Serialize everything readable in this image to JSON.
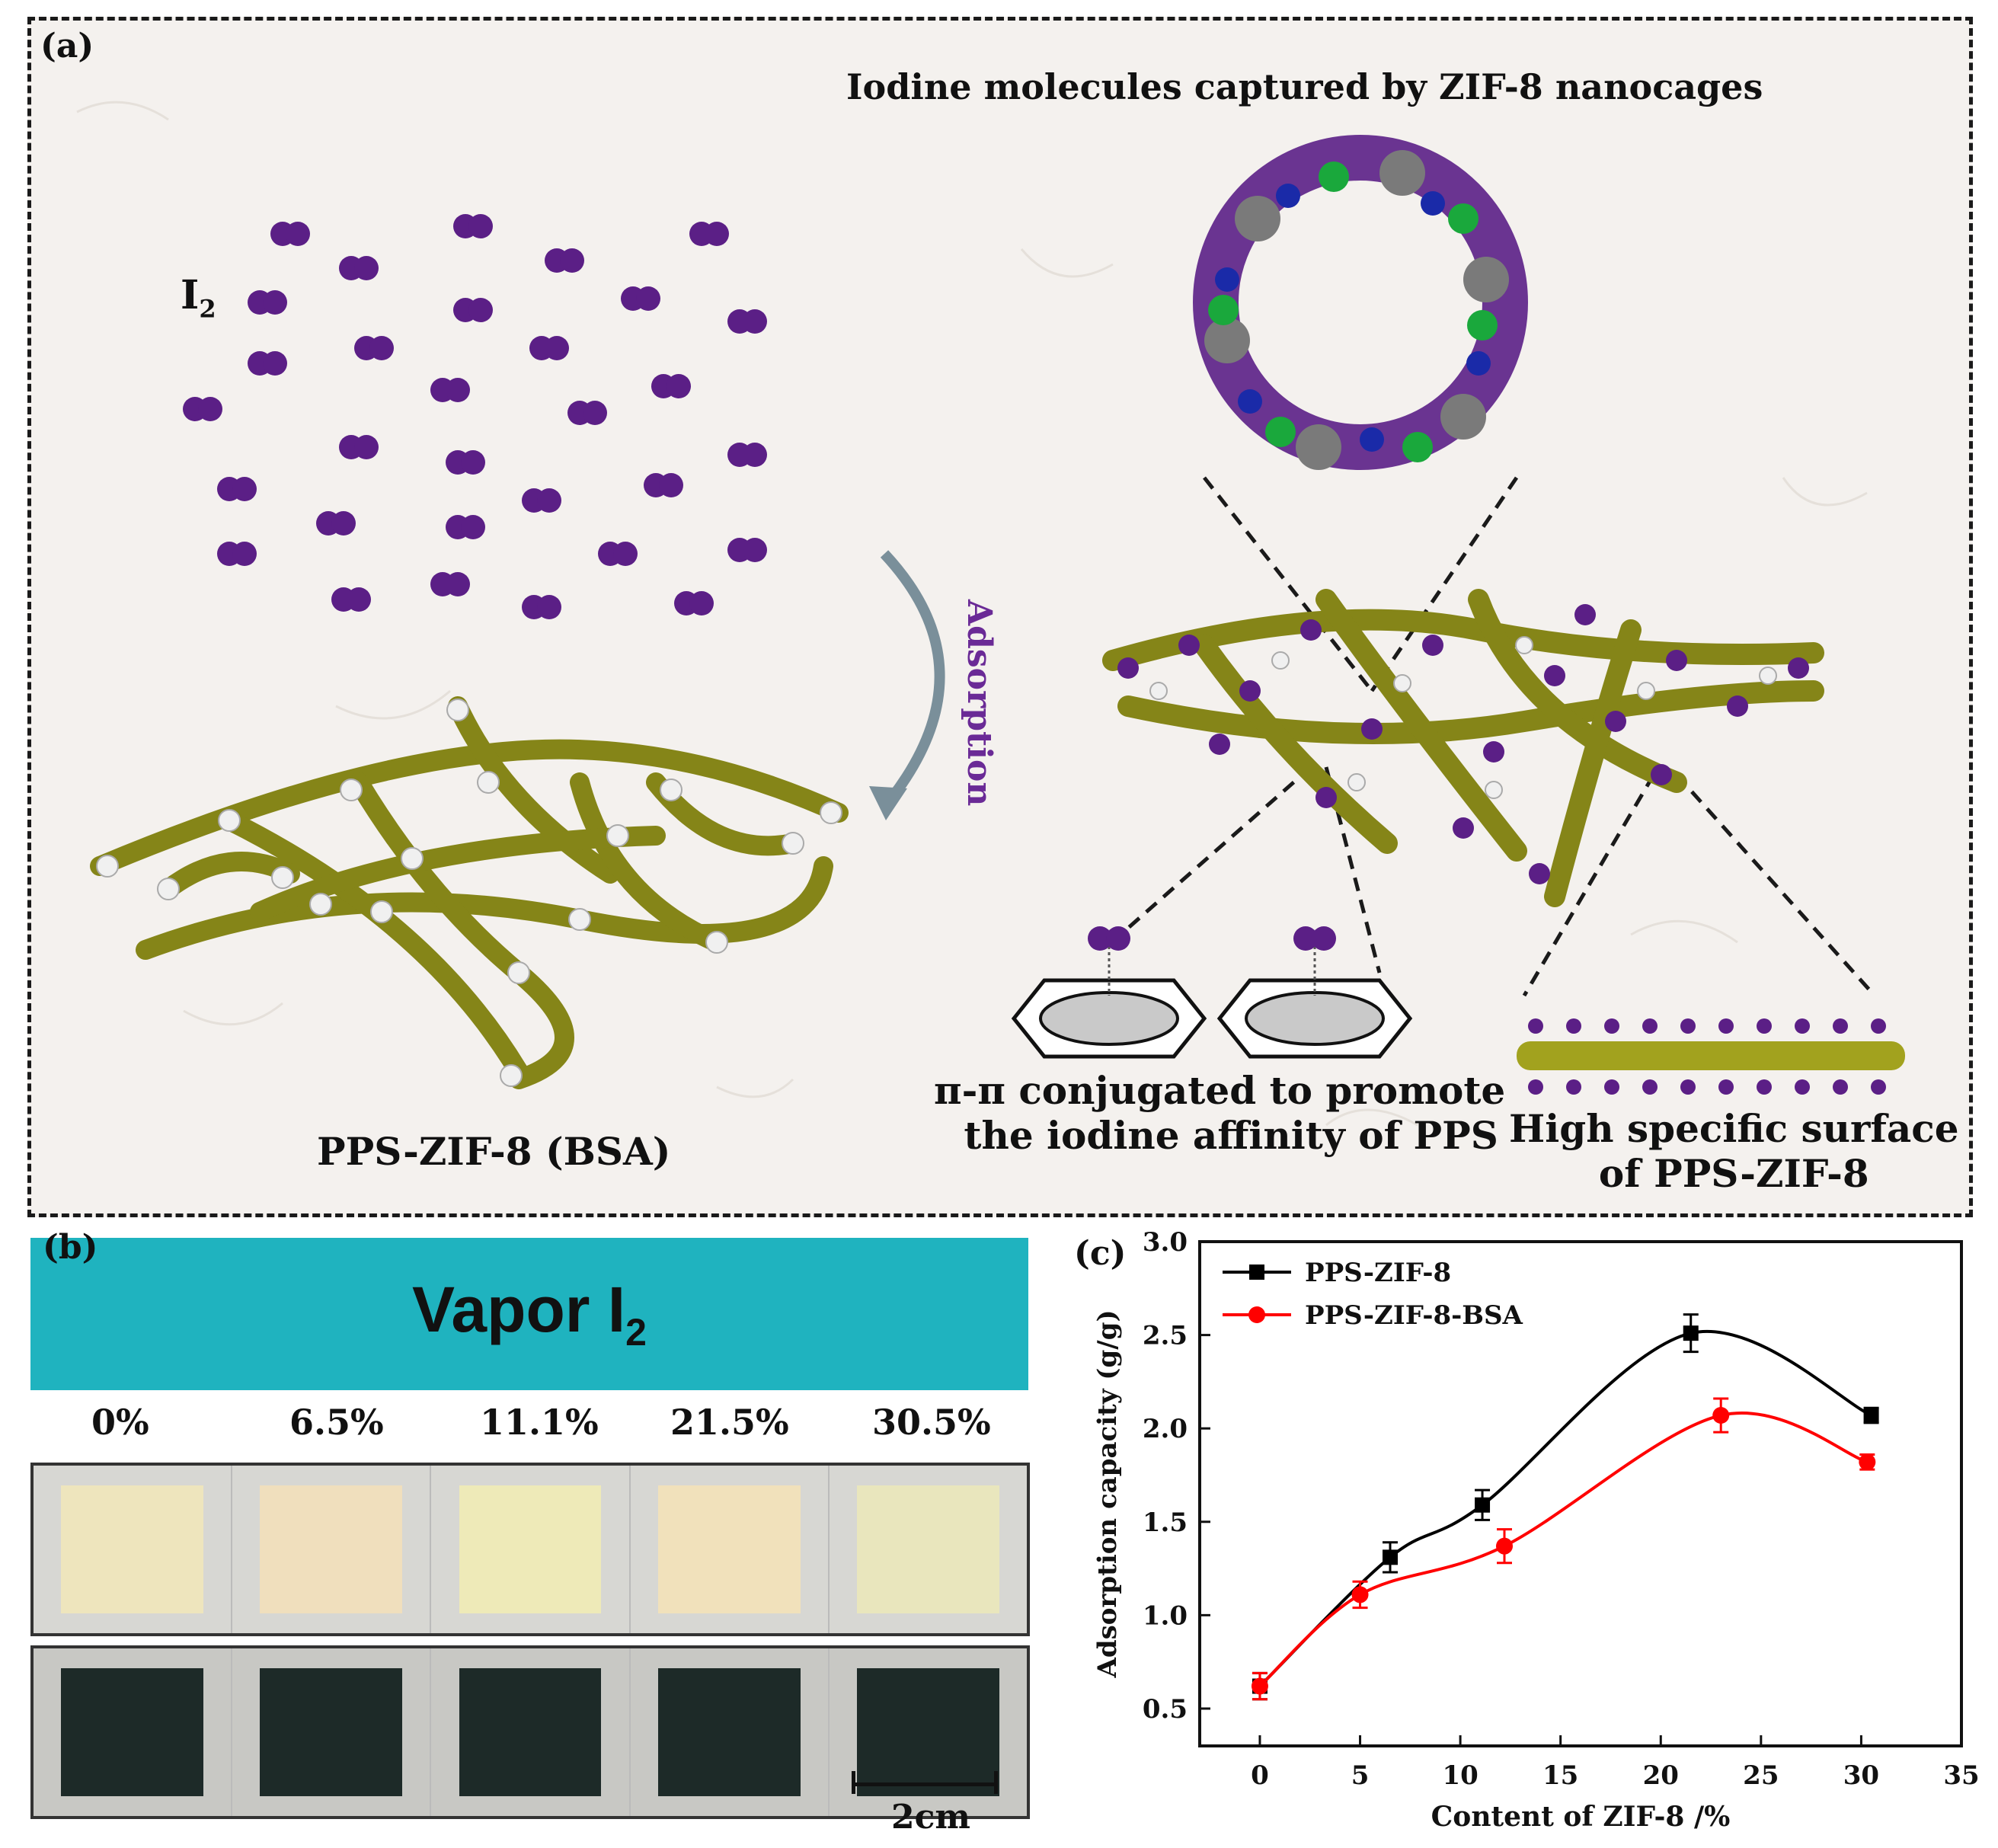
{
  "panel_a": {
    "label": "(a)",
    "title": "Iodine molecules captured by ZIF-8 nanocages",
    "i2_label": "I",
    "i2_sub": "2",
    "arrow_label": "Adsorption",
    "membrane_label": "PPS-ZIF-8 (BSA)",
    "pi_text_line1": "π-π conjugated to promote",
    "pi_text_line2": "the iodine affinity of PPS",
    "surface_text_line1": "High specific surface",
    "surface_text_line2": "of PPS-ZIF-8",
    "colors": {
      "iodine": "#5b1f86",
      "fiber": "#8a8a1e",
      "zinc": "#1aa83c",
      "nitrogen": "#1a2aa8",
      "carbon": "#7a7a7a"
    }
  },
  "panel_b": {
    "label": "(b)",
    "banner_text": "Vapor I",
    "banner_sub": "2",
    "banner_color": "#1fb3bf",
    "percent_labels": [
      "0%",
      "6.5%",
      "11.1%",
      "21.5%",
      "30.5%"
    ],
    "scale_label": "2cm",
    "before_colors": [
      "#eee5bd",
      "#f0dfbd",
      "#eeeab8",
      "#f1e1bb",
      "#e9e6bd"
    ],
    "after_color": "#1d2a28"
  },
  "chart_data": {
    "label": "(c)",
    "type": "line",
    "xlabel": "Content of ZIF-8 /%",
    "ylabel": "Adsorption capacity (g/g)",
    "xlim": [
      -3,
      35
    ],
    "ylim": [
      0.3,
      3.0
    ],
    "xticks": [
      0,
      5,
      10,
      15,
      20,
      25,
      30,
      35
    ],
    "yticks": [
      0.5,
      1.0,
      1.5,
      2.0,
      2.5,
      3.0
    ],
    "xtick_labels": [
      "0",
      "5",
      "10",
      "15",
      "20",
      "25",
      "30",
      "35"
    ],
    "ytick_labels": [
      "0.5",
      "1.0",
      "1.5",
      "2.0",
      "2.5",
      "3.0"
    ],
    "legend_position": "top-left",
    "series": [
      {
        "name": "PPS-ZIF-8",
        "color": "#000000",
        "marker": "square",
        "x": [
          0,
          6.5,
          11.1,
          21.5,
          30.5
        ],
        "y": [
          0.62,
          1.31,
          1.59,
          2.51,
          2.07
        ],
        "err": [
          0.07,
          0.08,
          0.08,
          0.1,
          0.04
        ]
      },
      {
        "name": "PPS-ZIF-8-BSA",
        "color": "#ff0000",
        "marker": "circle",
        "x": [
          0,
          5,
          12.2,
          23,
          30.3
        ],
        "y": [
          0.62,
          1.11,
          1.37,
          2.07,
          1.82
        ],
        "err": [
          0.07,
          0.07,
          0.09,
          0.09,
          0.04
        ]
      }
    ]
  }
}
